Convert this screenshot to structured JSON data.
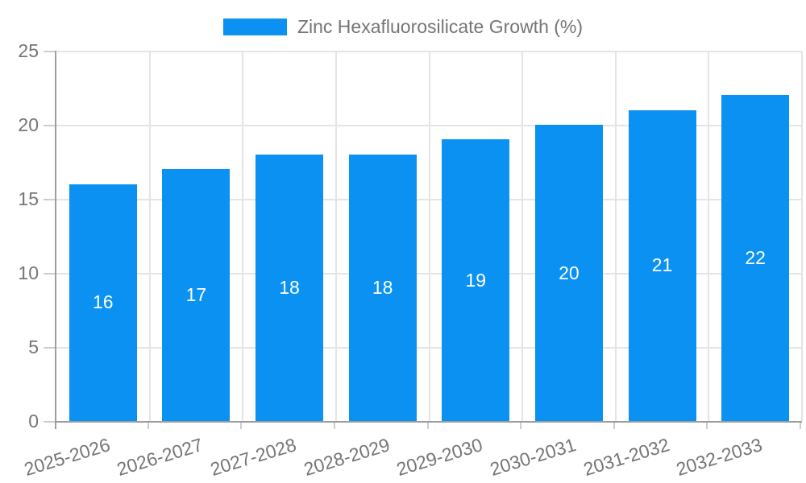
{
  "chart_data": {
    "type": "bar",
    "title": "Zinc Hexafluorosilicate Growth (%)",
    "categories": [
      "2025-2026",
      "2026-2027",
      "2027-2028",
      "2028-2029",
      "2029-2030",
      "2030-2031",
      "2031-2032",
      "2032-2033"
    ],
    "values": [
      16,
      17,
      18,
      18,
      19,
      20,
      21,
      22
    ],
    "xlabel": "",
    "ylabel": "",
    "ylim": [
      0,
      25
    ],
    "yticks": [
      0,
      5,
      10,
      15,
      20,
      25
    ],
    "grid": true,
    "legend_position": "top-center",
    "value_labels": "centered-in-bar",
    "colors": {
      "bar": "#0a91f2",
      "value_label": "#ffffff",
      "axis_text": "#757575",
      "axis_line": "#9e9e9e",
      "gridline": "#e4e4e4",
      "tick": "#cccccc"
    }
  }
}
